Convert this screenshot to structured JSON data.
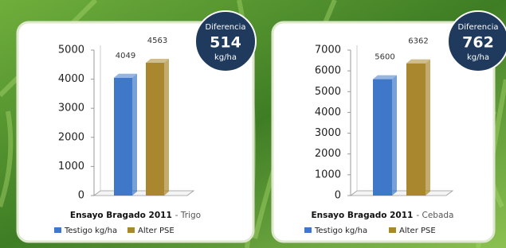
{
  "chart_data": [
    {
      "type": "bar",
      "title": "Ensayo Bragado 2011",
      "subtitle": "- Trigo",
      "categories": [
        null
      ],
      "series": [
        {
          "name": "Testigo kg/ha",
          "color": "#3f78c8",
          "values": [
            4049
          ]
        },
        {
          "name": "Alter PSE",
          "color": "#a8872e",
          "values": [
            4563
          ]
        }
      ],
      "ylim": [
        0,
        5000
      ],
      "yticks": [
        0,
        1000,
        2000,
        3000,
        4000,
        5000
      ],
      "annotation": {
        "label": "Diferencia",
        "value": 514,
        "unit": "kg/ha"
      }
    },
    {
      "type": "bar",
      "title": "Ensayo Bragado 2011",
      "subtitle": "- Cebada",
      "categories": [
        null
      ],
      "series": [
        {
          "name": "Testigo kg/ha",
          "color": "#3f78c8",
          "values": [
            5600
          ]
        },
        {
          "name": "Alter PSE",
          "color": "#a8872e",
          "values": [
            6362
          ]
        }
      ],
      "ylim": [
        0,
        7000
      ],
      "yticks": [
        0,
        1000,
        2000,
        3000,
        4000,
        5000,
        6000,
        7000
      ],
      "annotation": {
        "label": "Diferencia",
        "value": 762,
        "unit": "kg/ha"
      }
    }
  ]
}
